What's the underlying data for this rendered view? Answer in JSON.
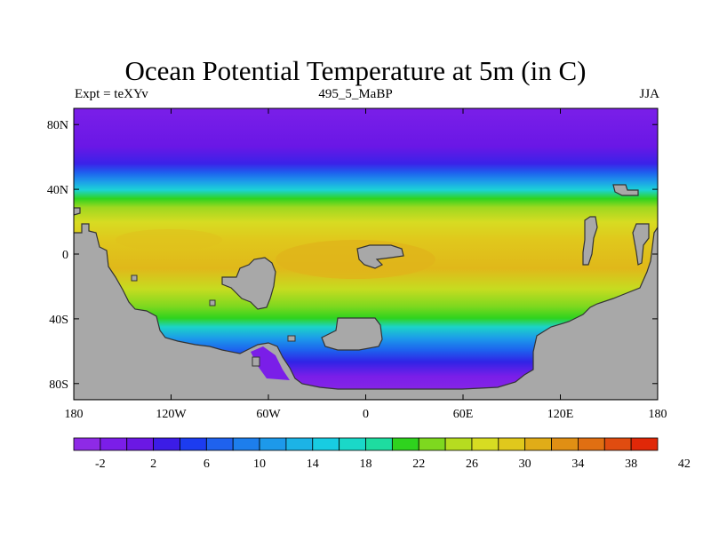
{
  "title": "Ocean Potential Temperature at 5m (in C)",
  "left_label": "Expt = teXYv",
  "center_label": "495_5_MaBP",
  "right_label": "JJA",
  "map": {
    "projection": "cylindrical equidistant",
    "lon_range": [
      -180,
      180
    ],
    "lat_range": [
      -90,
      90
    ],
    "land_color": "#a8a8a8",
    "x_ticks": [
      {
        "lon": -180,
        "label": "180"
      },
      {
        "lon": -120,
        "label": "120W"
      },
      {
        "lon": -60,
        "label": "60W"
      },
      {
        "lon": 0,
        "label": "0"
      },
      {
        "lon": 60,
        "label": "60E"
      },
      {
        "lon": 120,
        "label": "120E"
      },
      {
        "lon": 180,
        "label": "180"
      }
    ],
    "y_ticks": [
      {
        "lat": 80,
        "label": "80N"
      },
      {
        "lat": 40,
        "label": "40N"
      },
      {
        "lat": 0,
        "label": "0"
      },
      {
        "lat": -40,
        "label": "40S"
      },
      {
        "lat": -80,
        "label": "80S"
      }
    ]
  },
  "colorbar": {
    "labels": [
      "-2",
      "2",
      "6",
      "10",
      "14",
      "18",
      "22",
      "26",
      "30",
      "34",
      "38",
      "42"
    ],
    "colors": [
      "#8e2ae6",
      "#7b1ee8",
      "#6b18e4",
      "#3c1ce6",
      "#1c3cf0",
      "#1f62ee",
      "#1d7eec",
      "#1d99ea",
      "#1cb3e6",
      "#18cce2",
      "#1ad8c8",
      "#1edca0",
      "#2fd31e",
      "#7ed81f",
      "#b6dc20",
      "#d7dc22",
      "#e0c81c",
      "#e0ac18",
      "#e08f14",
      "#e06f12",
      "#e04c10",
      "#e02808"
    ]
  }
}
